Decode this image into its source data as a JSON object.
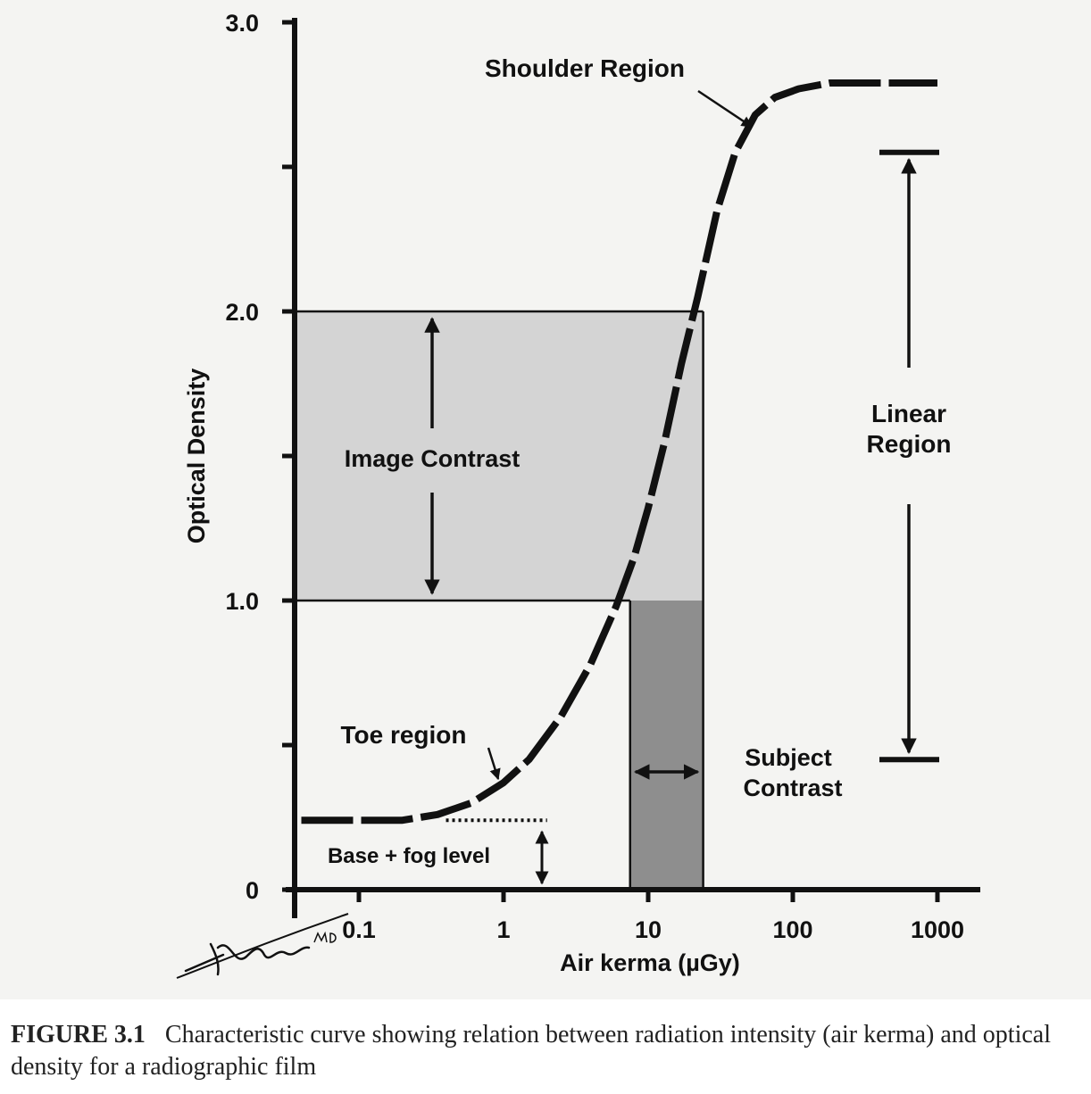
{
  "chart_data": {
    "type": "line",
    "xlabel": "Air kerma (µGy)",
    "ylabel": "Optical Density",
    "x_scale": "log",
    "xlim": [
      0.03,
      2000
    ],
    "ylim": [
      0,
      3.0
    ],
    "x_ticks": [
      0.1,
      1,
      10,
      100,
      1000
    ],
    "x_tick_labels": [
      "0.1",
      "1",
      "10",
      "100",
      "1000"
    ],
    "y_ticks": [
      0,
      1.0,
      2.0,
      3.0
    ],
    "y_tick_labels": [
      "0",
      "1.0",
      "2.0",
      "3.0"
    ],
    "grid": false,
    "series": [
      {
        "x": [
          0.04,
          0.1,
          0.2,
          0.35,
          0.6,
          1.0,
          1.5,
          2.5,
          4.0,
          6.0,
          8.0,
          10.0,
          13.0,
          17.0,
          22.0,
          30.0,
          40.0,
          55.0,
          75.0,
          110.0,
          180.0,
          300.0,
          600.0,
          1000.0
        ],
        "y": [
          0.24,
          0.24,
          0.24,
          0.26,
          0.3,
          0.37,
          0.45,
          0.6,
          0.78,
          0.98,
          1.15,
          1.32,
          1.55,
          1.82,
          2.05,
          2.35,
          2.55,
          2.68,
          2.74,
          2.77,
          2.79,
          2.79,
          2.79,
          2.79
        ]
      }
    ],
    "annotations": {
      "shoulder": "Shoulder Region",
      "linear": [
        "Linear",
        "Region"
      ],
      "image_contrast": "Image Contrast",
      "toe": "Toe region",
      "subject_contrast": [
        "Subject",
        "Contrast"
      ],
      "base_fog": "Base + fog level"
    },
    "image_contrast_band": {
      "y_from": 1.0,
      "y_to": 2.0
    },
    "subject_contrast_band": {
      "x_from": 7.5,
      "x_to": 24.0
    },
    "linear_region_range": {
      "y_from": 0.45,
      "y_to": 2.55
    },
    "base_fog_level": 0.24,
    "colors": {
      "image_contrast_fill": "#d4d4d4",
      "subject_contrast_fill": "#8e8e8e",
      "ink": "#111111",
      "panel": "#f4f4f2"
    }
  },
  "signature": "Aliyari M.D.",
  "caption": {
    "figure_number": "FIGURE 3.1",
    "text": "Characteristic curve showing relation between radiation intensity (air kerma) and optical density for a radiographic film"
  }
}
